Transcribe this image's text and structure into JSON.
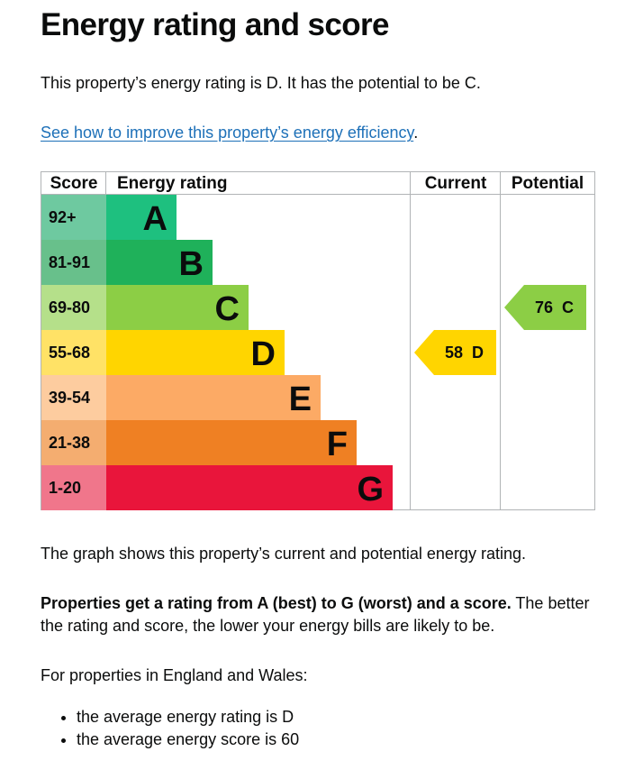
{
  "heading": "Energy rating and score",
  "intro": "This property’s energy rating is D. It has the potential to be C.",
  "improve_link": "See how to improve this property’s energy efficiency",
  "improve_link_suffix": ".",
  "chart_data": {
    "type": "table",
    "headers": {
      "score": "Score",
      "rating": "Energy rating",
      "current": "Current",
      "potential": "Potential"
    },
    "bands": [
      {
        "score": "92+",
        "letter": "A",
        "color": "#1ec07f",
        "score_bg": "#6ec9a0"
      },
      {
        "score": "81-91",
        "letter": "B",
        "color": "#1fb15a",
        "score_bg": "#68c08b"
      },
      {
        "score": "69-80",
        "letter": "C",
        "color": "#8cce45",
        "score_bg": "#b5e08a"
      },
      {
        "score": "55-68",
        "letter": "D",
        "color": "#ffd500",
        "score_bg": "#ffe266"
      },
      {
        "score": "39-54",
        "letter": "E",
        "color": "#fcaa65",
        "score_bg": "#fdcc9f"
      },
      {
        "score": "21-38",
        "letter": "F",
        "color": "#ef8023",
        "score_bg": "#f4ad70"
      },
      {
        "score": "1-20",
        "letter": "G",
        "color": "#e9153b",
        "score_bg": "#f0768b"
      }
    ],
    "current": {
      "score": 58,
      "letter": "D",
      "label": "58  D",
      "color": "#ffd500"
    },
    "potential": {
      "score": 76,
      "letter": "C",
      "label": "76  C",
      "color": "#8cce45"
    }
  },
  "graph_note": "The graph shows this property’s current and potential energy rating.",
  "rating_info_bold": "Properties get a rating from A (best) to G (worst) and a score.",
  "rating_info_rest": " The better the rating and score, the lower your energy bills are likely to be.",
  "region_note": "For properties in England and Wales:",
  "averages": [
    "the average energy rating is D",
    "the average energy score is 60"
  ]
}
